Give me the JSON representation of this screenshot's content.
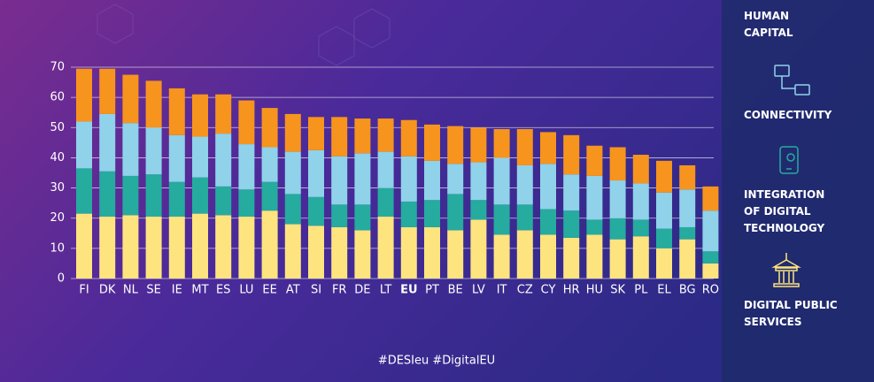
{
  "chart_data": {
    "type": "stacked_bar",
    "categories": [
      "FI",
      "DK",
      "NL",
      "SE",
      "IE",
      "MT",
      "ES",
      "LU",
      "EE",
      "AT",
      "SI",
      "FR",
      "DE",
      "LT",
      "EU",
      "PT",
      "BE",
      "LV",
      "IT",
      "CZ",
      "CY",
      "HR",
      "HU",
      "SK",
      "PL",
      "EL",
      "BG",
      "RO"
    ],
    "highlight_index": 14,
    "series": [
      {
        "name": "DIGITAL PUBLIC\nSERVICES",
        "color": "#fde47f",
        "values": [
          21.5,
          20.5,
          21,
          20.5,
          20.5,
          21.5,
          21,
          20.5,
          22.5,
          18,
          17.5,
          17,
          16,
          20.5,
          17,
          17,
          16,
          19.5,
          14.5,
          16,
          14.5,
          13.5,
          14.5,
          13,
          14,
          10,
          13,
          5
        ]
      },
      {
        "name": "INTEGRATION\nOF DIGITAL\nTECHNOLOGY",
        "color": "#26ab9f",
        "values": [
          15,
          15,
          13,
          14,
          11.5,
          12,
          9.5,
          9,
          9.5,
          10,
          9.5,
          7.5,
          8.5,
          9.5,
          8.5,
          9,
          12,
          6.5,
          10,
          8.5,
          8.5,
          9,
          5,
          7,
          5.5,
          6.5,
          4,
          4
        ]
      },
      {
        "name": "CONNECTIVITY",
        "color": "#8fd2ea",
        "values": [
          15.5,
          19,
          17.5,
          15.5,
          15.5,
          13.5,
          17.5,
          15,
          11.5,
          14,
          15.5,
          16,
          17,
          12,
          15,
          13,
          10,
          12.5,
          15.5,
          13,
          15,
          12,
          14.5,
          12.5,
          12,
          12,
          12.5,
          13.5
        ]
      },
      {
        "name": "HUMAN\nCAPITAL",
        "color": "#f7941d",
        "values": [
          17.5,
          15,
          16,
          15.5,
          15.5,
          14,
          13,
          14.5,
          13,
          12.5,
          11,
          13,
          11.5,
          11,
          12,
          12,
          12.5,
          11.5,
          9.5,
          12,
          10.5,
          13,
          10,
          11,
          9.5,
          10.5,
          8,
          8
        ]
      }
    ],
    "ylim": [
      0,
      70
    ],
    "yticks": [
      0,
      10,
      20,
      30,
      40,
      50,
      60,
      70
    ],
    "grid": true,
    "footer": "#DESIeu #DigitalEU"
  }
}
